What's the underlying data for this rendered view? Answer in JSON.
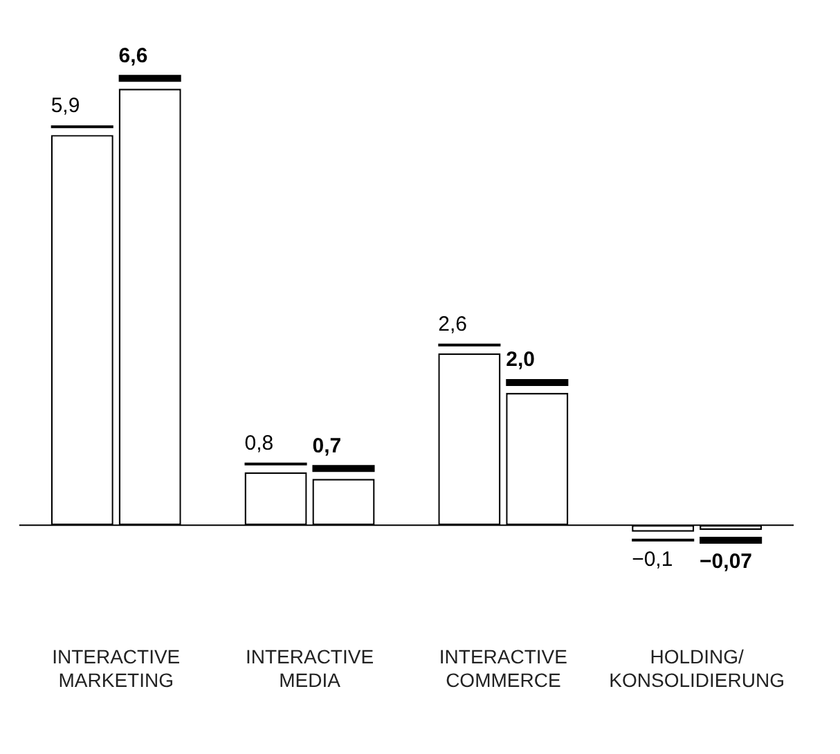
{
  "chart_data": {
    "type": "bar",
    "categories": [
      "INTERACTIVE\nMARKETING",
      "INTERACTIVE\nMEDIA",
      "INTERACTIVE\nCOMMERCE",
      "HOLDING/\nKONSOLIDIERUNG"
    ],
    "series": [
      {
        "color": "#ffffff",
        "values": [
          5.9,
          0.8,
          2.6,
          -0.1
        ],
        "value_labels": [
          "5,9",
          "0,8",
          "2,6",
          "−0,1"
        ]
      },
      {
        "color": "#ffffff",
        "values": [
          6.6,
          0.7,
          2.0,
          -0.07
        ],
        "value_labels": [
          "6,6",
          "0,7",
          "2,0",
          "−0,07"
        ]
      }
    ],
    "tick_labels": "x",
    "grid": false,
    "legend": false
  }
}
